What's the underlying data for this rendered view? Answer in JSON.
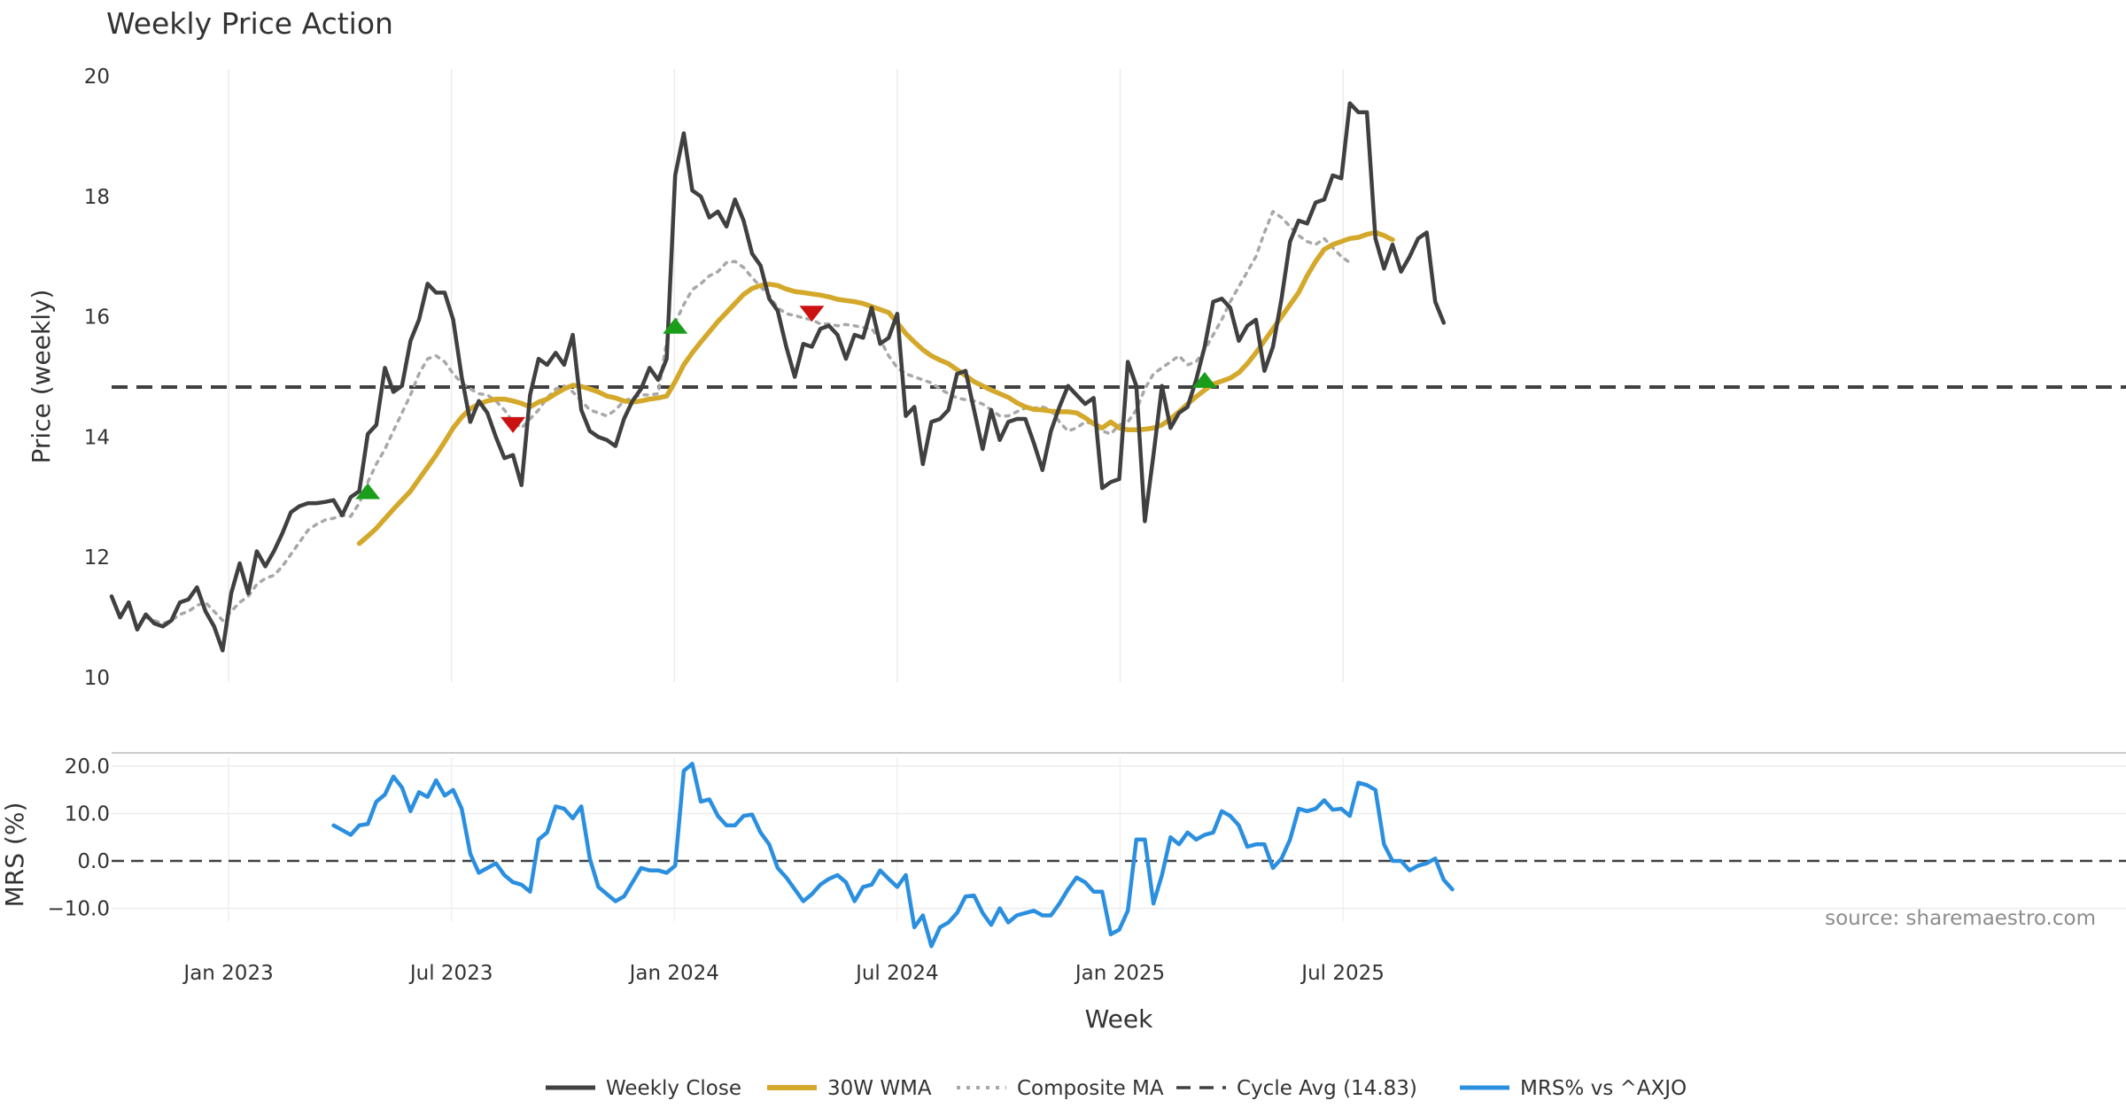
{
  "chart_data": {
    "type": "line",
    "title": "Weekly Price Action",
    "xlabel": "Week",
    "x_ticks": [
      "Jan 2023",
      "Jul 2023",
      "Jan 2024",
      "Jul 2024",
      "Jan 2025",
      "Jul 2025"
    ],
    "price_panel": {
      "ylabel": "Price (weekly)",
      "ylim": [
        10,
        20
      ],
      "y_ticks": [
        "10",
        "12",
        "14",
        "16",
        "18",
        "20"
      ],
      "cycle_avg": 14.83,
      "series": [
        {
          "name": "Weekly Close",
          "color": "#404040",
          "start_week": 0,
          "values": [
            11.35,
            11.0,
            11.25,
            10.8,
            11.05,
            10.9,
            10.85,
            10.95,
            11.25,
            11.3,
            11.5,
            11.1,
            10.85,
            10.45,
            11.4,
            11.9,
            11.4,
            12.1,
            11.85,
            12.1,
            12.4,
            12.75,
            12.85,
            12.9,
            12.9,
            12.92,
            12.95,
            12.7,
            13.0,
            13.1,
            14.05,
            14.2,
            15.15,
            14.75,
            14.85,
            15.6,
            15.95,
            16.55,
            16.4,
            16.4,
            15.95,
            15.0,
            14.25,
            14.6,
            14.4,
            14.0,
            13.65,
            13.7,
            13.2,
            14.7,
            15.3,
            15.2,
            15.4,
            15.2,
            15.7,
            14.45,
            14.1,
            14.0,
            13.95,
            13.85,
            14.3,
            14.6,
            14.8,
            15.15,
            14.95,
            15.3,
            18.35,
            19.05,
            18.1,
            18.0,
            17.65,
            17.75,
            17.5,
            17.95,
            17.6,
            17.05,
            16.85,
            16.3,
            16.1,
            15.5,
            15.0,
            15.55,
            15.5,
            15.8,
            15.85,
            15.7,
            15.3,
            15.7,
            15.65,
            16.15,
            15.55,
            15.65,
            16.05,
            14.35,
            14.5,
            13.55,
            14.25,
            14.3,
            14.45,
            15.05,
            15.1,
            14.45,
            13.8,
            14.45,
            13.95,
            14.25,
            14.3,
            14.3,
            13.9,
            13.45,
            14.1,
            14.5,
            14.85,
            14.7,
            14.55,
            14.65,
            13.15,
            13.25,
            13.3,
            15.25,
            14.85,
            12.6,
            13.7,
            14.85,
            14.15,
            14.4,
            14.5,
            14.95,
            15.5,
            16.25,
            16.3,
            16.15,
            15.6,
            15.85,
            15.95,
            15.1,
            15.5,
            16.3,
            17.25,
            17.6,
            17.55,
            17.9,
            17.95,
            18.35,
            18.3,
            19.55,
            19.4,
            19.4,
            17.3,
            16.8,
            17.2,
            16.75,
            17.0,
            17.3,
            17.4,
            16.25,
            15.9
          ]
        },
        {
          "name": "30W WMA",
          "color": "#d4a82a",
          "start_week": 29,
          "values": [
            12.23,
            12.35,
            12.48,
            12.64,
            12.8,
            12.95,
            13.1,
            13.3,
            13.5,
            13.7,
            13.92,
            14.15,
            14.33,
            14.47,
            14.55,
            14.6,
            14.63,
            14.63,
            14.6,
            14.56,
            14.5,
            14.58,
            14.63,
            14.72,
            14.8,
            14.86,
            14.84,
            14.8,
            14.75,
            14.68,
            14.65,
            14.6,
            14.58,
            14.6,
            14.63,
            14.65,
            14.68,
            14.92,
            15.2,
            15.4,
            15.58,
            15.75,
            15.92,
            16.07,
            16.22,
            16.37,
            16.47,
            16.52,
            16.54,
            16.52,
            16.46,
            16.42,
            16.4,
            16.38,
            16.36,
            16.33,
            16.29,
            16.27,
            16.25,
            16.22,
            16.17,
            16.12,
            16.07,
            15.9,
            15.72,
            15.58,
            15.45,
            15.35,
            15.28,
            15.22,
            15.12,
            15.02,
            14.92,
            14.85,
            14.78,
            14.72,
            14.66,
            14.57,
            14.5,
            14.46,
            14.45,
            14.43,
            14.42,
            14.42,
            14.4,
            14.32,
            14.22,
            14.15,
            14.25,
            14.15,
            14.12,
            14.12,
            14.13,
            14.15,
            14.2,
            14.3,
            14.42,
            14.55,
            14.67,
            14.78,
            14.88,
            14.93,
            14.98,
            15.07,
            15.22,
            15.4,
            15.6,
            15.8,
            16.0,
            16.2,
            16.4,
            16.68,
            16.92,
            17.12,
            17.2,
            17.25,
            17.3,
            17.32,
            17.37,
            17.4,
            17.35,
            17.28
          ]
        },
        {
          "name": "Composite MA",
          "color": "#a8a8a8",
          "start_week": 4,
          "values": [
            11.0,
            10.95,
            10.9,
            10.95,
            11.05,
            11.1,
            11.2,
            11.25,
            11.1,
            10.95,
            11.1,
            11.25,
            11.35,
            11.55,
            11.65,
            11.7,
            11.85,
            12.05,
            12.25,
            12.45,
            12.55,
            12.62,
            12.65,
            12.7,
            12.68,
            12.9,
            13.25,
            13.55,
            13.8,
            14.1,
            14.4,
            14.7,
            15.05,
            15.3,
            15.35,
            15.25,
            15.05,
            14.9,
            14.8,
            14.72,
            14.7,
            14.6,
            14.45,
            14.25,
            14.15,
            14.3,
            14.45,
            14.65,
            14.8,
            14.85,
            14.75,
            14.6,
            14.45,
            14.4,
            14.35,
            14.45,
            14.6,
            14.65,
            14.7,
            14.7,
            14.72,
            15.6,
            15.9,
            16.2,
            16.45,
            16.55,
            16.68,
            16.75,
            16.9,
            16.92,
            16.82,
            16.65,
            16.5,
            16.35,
            16.15,
            16.05,
            16.02,
            15.98,
            15.95,
            15.88,
            15.88,
            15.85,
            15.87,
            15.85,
            15.82,
            15.8,
            15.62,
            15.35,
            15.15,
            15.05,
            15.0,
            14.95,
            14.9,
            14.8,
            14.72,
            14.65,
            14.62,
            14.6,
            14.55,
            14.45,
            14.35,
            14.35,
            14.42,
            14.48,
            14.48,
            14.5,
            14.45,
            14.25,
            14.1,
            14.15,
            14.25,
            14.22,
            14.1,
            14.05,
            14.2,
            14.25,
            14.45,
            14.8,
            15.05,
            15.15,
            15.25,
            15.35,
            15.2,
            15.25,
            15.45,
            15.7,
            15.95,
            16.25,
            16.5,
            16.75,
            17.0,
            17.4,
            17.75,
            17.65,
            17.5,
            17.35,
            17.25,
            17.2,
            17.3,
            17.15,
            17.0,
            16.9
          ]
        }
      ],
      "signals": [
        {
          "type": "buy",
          "week": 30,
          "value": 13.1,
          "color": "#1a9e1a"
        },
        {
          "type": "sell",
          "week": 47,
          "value": 14.2,
          "color": "#cc1111"
        },
        {
          "type": "buy",
          "week": 66,
          "value": 15.85,
          "color": "#1a9e1a"
        },
        {
          "type": "sell",
          "week": 82,
          "value": 16.05,
          "color": "#cc1111"
        },
        {
          "type": "buy",
          "week": 128,
          "value": 14.95,
          "color": "#1a9e1a"
        }
      ]
    },
    "mrs_panel": {
      "ylabel": "MRS (%)",
      "ylim": [
        -18,
        22
      ],
      "y_ticks": [
        "20.0",
        "10.0",
        "0.0",
        "−10.0"
      ],
      "series": [
        {
          "name": "MRS% vs ^AXJO",
          "color": "#2b8fe0",
          "start_week": 26,
          "values": [
            7.5,
            6.5,
            5.5,
            7.5,
            7.8,
            12.5,
            14.0,
            17.8,
            15.5,
            10.5,
            14.5,
            13.5,
            17.0,
            13.8,
            15.0,
            11.0,
            1.5,
            -2.5,
            -1.5,
            -0.5,
            -3.0,
            -4.5,
            -5.0,
            -6.5,
            4.5,
            6.0,
            11.5,
            11.0,
            9.0,
            11.5,
            0.5,
            -5.5,
            -7.0,
            -8.5,
            -7.5,
            -4.5,
            -1.5,
            -2.0,
            -2.0,
            -2.5,
            -1.0,
            19.0,
            20.5,
            12.5,
            13.0,
            9.5,
            7.5,
            7.5,
            9.5,
            9.8,
            6.0,
            3.5,
            -1.5,
            -3.5,
            -6.0,
            -8.5,
            -7.0,
            -5.0,
            -3.8,
            -3.0,
            -4.5,
            -8.5,
            -5.5,
            -5.0,
            -2.0,
            -3.8,
            -5.5,
            -3.0,
            -14.0,
            -11.5,
            -18.0,
            -14.0,
            -13.0,
            -11.0,
            -7.5,
            -7.3,
            -11.0,
            -13.5,
            -10.0,
            -13.0,
            -11.5,
            -11.0,
            -10.5,
            -11.5,
            -11.5,
            -9.0,
            -6.0,
            -3.5,
            -4.5,
            -6.5,
            -6.5,
            -15.5,
            -14.5,
            -10.5,
            4.5,
            4.5,
            -9.0,
            -3.0,
            5.0,
            3.5,
            6.0,
            4.5,
            5.5,
            6.0,
            10.5,
            9.5,
            7.5,
            3.0,
            3.5,
            3.5,
            -1.5,
            0.5,
            4.5,
            11.0,
            10.5,
            11.0,
            12.8,
            10.8,
            11.0,
            9.5,
            16.5,
            16.0,
            15.0,
            3.5,
            0.0,
            0.0,
            -2.0,
            -1.0,
            -0.5,
            0.5,
            -4.0,
            -6.0
          ]
        }
      ]
    },
    "legend": {
      "placement": "bottom-center",
      "entries": [
        "Weekly Close",
        "30W WMA",
        "Composite MA",
        "Cycle Avg (14.83)",
        "MRS% vs ^AXJO"
      ]
    },
    "source": "source: sharemaestro.com"
  }
}
